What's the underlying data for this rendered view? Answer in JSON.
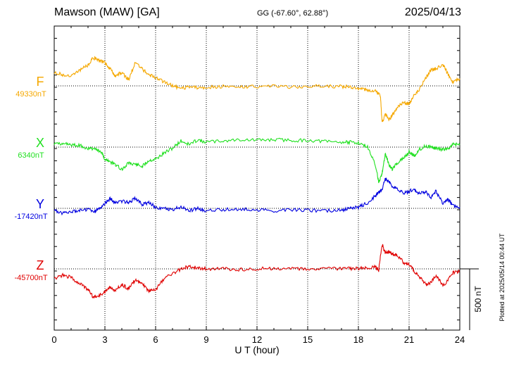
{
  "header": {
    "station": "Mawson (MAW)  [GA]",
    "coords": "GG (-67.60°,  62.88°)",
    "date": "2025/04/13"
  },
  "plotted_note": "Plotted at 2025/05/14 00:44 UT",
  "scale_label": "500 nT",
  "colors": {
    "F": "#f5a800",
    "X": "#1fe01f",
    "Y": "#0000e0",
    "Z": "#e00000"
  },
  "chart_data": {
    "type": "line",
    "title": "Mawson (MAW)  [GA]",
    "xlabel": "U T (hour)",
    "xlim": [
      0,
      24
    ],
    "x_ticks": [
      "0",
      "3",
      "6",
      "9",
      "12",
      "15",
      "18",
      "21",
      "24"
    ],
    "scale_bar_nT": 500,
    "series": [
      {
        "name": "F",
        "baseline_label": "49330nT",
        "baseline": 49330,
        "x": [
          0,
          0.5,
          1,
          1.5,
          2,
          2.3,
          2.6,
          3,
          3.3,
          3.6,
          4,
          4.4,
          4.8,
          5.2,
          5.6,
          6,
          6.5,
          7,
          7.5,
          8,
          8.5,
          9,
          10,
          11,
          12,
          13,
          14,
          15,
          16,
          17,
          17.5,
          18,
          18.5,
          19,
          19.3,
          19.4,
          19.6,
          19.8,
          20,
          20.3,
          20.7,
          21,
          21.3,
          21.6,
          22,
          22.3,
          22.6,
          23,
          23.3,
          23.6,
          24
        ],
        "y": [
          49440,
          49420,
          49410,
          49460,
          49500,
          49560,
          49540,
          49520,
          49470,
          49410,
          49440,
          49380,
          49520,
          49470,
          49420,
          49400,
          49360,
          49330,
          49310,
          49320,
          49315,
          49320,
          49325,
          49325,
          49325,
          49325,
          49322,
          49325,
          49328,
          49325,
          49320,
          49310,
          49300,
          49290,
          49250,
          49030,
          49100,
          49050,
          49090,
          49150,
          49200,
          49180,
          49260,
          49300,
          49400,
          49460,
          49470,
          49500,
          49430,
          49360,
          49390
        ]
      },
      {
        "name": "X",
        "baseline_label": "6340nT",
        "baseline": 6340,
        "x": [
          0,
          0.5,
          1,
          1.5,
          2,
          2.5,
          2.8,
          3,
          3.3,
          3.6,
          4,
          4.4,
          4.8,
          5.2,
          5.6,
          6,
          6.5,
          7,
          7.5,
          8,
          8.5,
          9,
          10,
          11,
          12,
          13,
          14,
          15,
          16,
          17,
          17.5,
          18,
          18.5,
          19,
          19.2,
          19.4,
          19.6,
          19.8,
          20,
          20.3,
          20.7,
          21,
          21.3,
          21.6,
          22,
          22.3,
          22.6,
          23,
          23.3,
          23.6,
          24
        ],
        "y": [
          6360,
          6370,
          6360,
          6355,
          6330,
          6320,
          6300,
          6240,
          6220,
          6200,
          6160,
          6210,
          6200,
          6180,
          6230,
          6240,
          6290,
          6330,
          6390,
          6360,
          6400,
          6380,
          6390,
          6400,
          6395,
          6400,
          6395,
          6395,
          6385,
          6380,
          6380,
          6375,
          6350,
          6200,
          6060,
          6120,
          6290,
          6200,
          6160,
          6210,
          6250,
          6300,
          6270,
          6320,
          6350,
          6340,
          6330,
          6320,
          6330,
          6360,
          6360
        ]
      },
      {
        "name": "Y",
        "baseline_label": "-17420nT",
        "baseline": -17420,
        "x": [
          0,
          0.5,
          1,
          1.5,
          2,
          2.4,
          2.7,
          3,
          3.3,
          3.6,
          4,
          4.4,
          4.8,
          5.2,
          5.6,
          6,
          6.5,
          7,
          7.5,
          8,
          8.5,
          9,
          10,
          11,
          12,
          13,
          14,
          15,
          16,
          17,
          17.5,
          18,
          18.5,
          19,
          19.2,
          19.4,
          19.6,
          19.8,
          20,
          20.3,
          20.7,
          21,
          21.3,
          21.6,
          22,
          22.3,
          22.6,
          23,
          23.3,
          23.6,
          24
        ],
        "y": [
          -17440,
          -17460,
          -17450,
          -17440,
          -17430,
          -17450,
          -17420,
          -17380,
          -17340,
          -17370,
          -17360,
          -17370,
          -17340,
          -17390,
          -17370,
          -17410,
          -17420,
          -17430,
          -17410,
          -17440,
          -17420,
          -17440,
          -17430,
          -17425,
          -17430,
          -17440,
          -17430,
          -17435,
          -17440,
          -17435,
          -17420,
          -17410,
          -17380,
          -17320,
          -17290,
          -17260,
          -17180,
          -17200,
          -17240,
          -17260,
          -17300,
          -17280,
          -17270,
          -17300,
          -17290,
          -17330,
          -17280,
          -17380,
          -17350,
          -17400,
          -17410
        ]
      },
      {
        "name": "Z",
        "baseline_label": "-45700nT",
        "baseline": -45700,
        "x": [
          0,
          0.5,
          1,
          1.5,
          2,
          2.3,
          2.6,
          3,
          3.3,
          3.6,
          4,
          4.4,
          4.8,
          5.2,
          5.6,
          6,
          6.5,
          7,
          7.5,
          8,
          8.5,
          9,
          10,
          11,
          12,
          13,
          14,
          15,
          16,
          17,
          17.5,
          18,
          18.5,
          19,
          19.2,
          19.4,
          19.6,
          19.8,
          20,
          20.3,
          20.7,
          21,
          21.3,
          21.6,
          22,
          22.3,
          22.6,
          23,
          23.3,
          23.6,
          24
        ],
        "y": [
          -45780,
          -45750,
          -45770,
          -45820,
          -45870,
          -45930,
          -45920,
          -45890,
          -45850,
          -45880,
          -45830,
          -45860,
          -45790,
          -45820,
          -45880,
          -45870,
          -45780,
          -45740,
          -45700,
          -45680,
          -45690,
          -45700,
          -45700,
          -45705,
          -45700,
          -45695,
          -45700,
          -45705,
          -45700,
          -45700,
          -45695,
          -45700,
          -45690,
          -45680,
          -45710,
          -45500,
          -45570,
          -45560,
          -45580,
          -45590,
          -45650,
          -45660,
          -45720,
          -45760,
          -45830,
          -45810,
          -45750,
          -45840,
          -45790,
          -45730,
          -45720
        ]
      }
    ]
  }
}
